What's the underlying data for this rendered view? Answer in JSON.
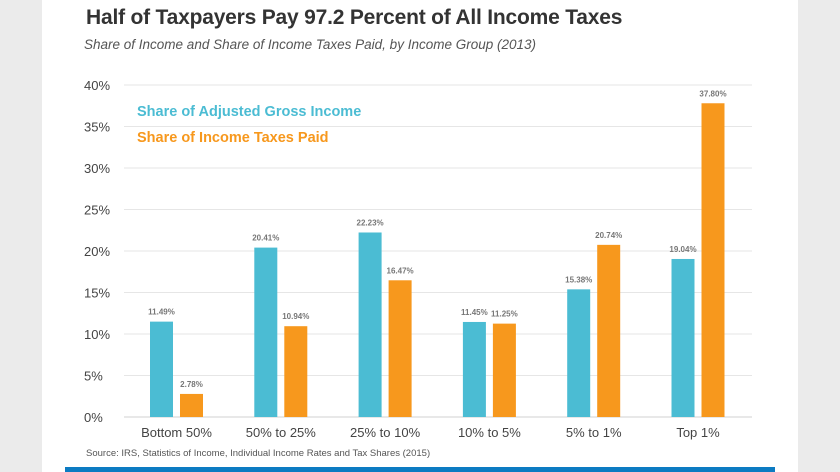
{
  "chart_data": {
    "type": "bar",
    "title": "Half of Taxpayers Pay 97.2 Percent of All Income Taxes",
    "subtitle": "Share of Income and Share of Income Taxes Paid, by Income Group (2013)",
    "source": "Source: IRS, Statistics of Income, Individual Income Rates and Tax Shares (2015)",
    "categories": [
      "Bottom 50%",
      "50% to 25%",
      "25% to 10%",
      "10% to 5%",
      "5% to 1%",
      "Top 1%"
    ],
    "series": [
      {
        "name": "Share of Adjusted Gross Income",
        "color": "#4bbcd3",
        "values": [
          11.49,
          20.41,
          22.23,
          11.45,
          15.38,
          19.04
        ],
        "labels": [
          "11.49%",
          "20.41%",
          "22.23%",
          "11.45%",
          "15.38%",
          "19.04%"
        ]
      },
      {
        "name": "Share of Income Taxes Paid",
        "color": "#f7981d",
        "values": [
          2.78,
          10.94,
          16.47,
          11.25,
          20.74,
          37.8
        ],
        "labels": [
          "2.78%",
          "10.94%",
          "16.47%",
          "11.25%",
          "20.74%",
          "37.80%"
        ]
      }
    ],
    "yticks": [
      "0%",
      "5%",
      "10%",
      "15%",
      "20%",
      "25%",
      "30%",
      "35%",
      "40%"
    ],
    "ytick_values": [
      0,
      5,
      10,
      15,
      20,
      25,
      30,
      35,
      40
    ],
    "ylim": [
      0,
      40
    ],
    "grid": true,
    "legend": "top-left",
    "xlabel": "",
    "ylabel": ""
  }
}
